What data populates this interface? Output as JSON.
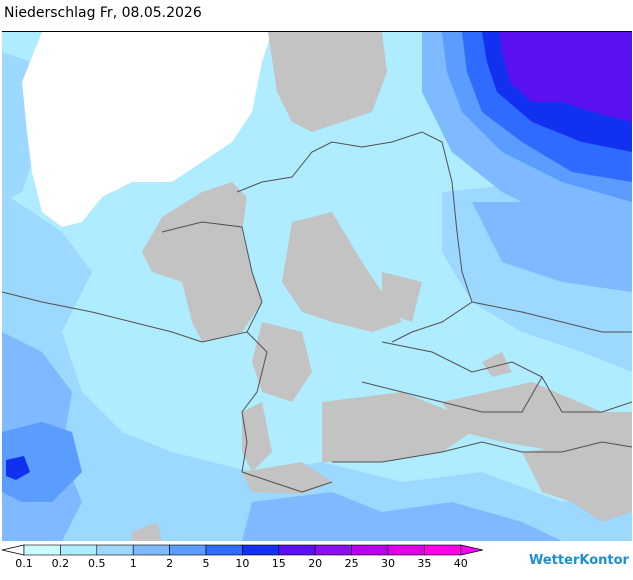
{
  "title": "Niederschlag Fr, 08.05.2026",
  "brand": "WetterKontor",
  "icons": {
    "brand": "raindrop-icon"
  },
  "legend": {
    "labels": [
      "0.1",
      "0.2",
      "0.5",
      "1",
      "2",
      "5",
      "10",
      "15",
      "20",
      "25",
      "30",
      "35",
      "40"
    ],
    "colors": [
      "#ffffff",
      "#ccffff",
      "#b0ecff",
      "#9cd8ff",
      "#7fb9ff",
      "#5a9cff",
      "#2f6bff",
      "#1230f0",
      "#5a10f0",
      "#8a10ee",
      "#b800ee",
      "#e000e8",
      "#ff00e8",
      "#ff00ff"
    ]
  },
  "map": {
    "land_color": "#c3c3c3",
    "sea_color": "#ffffff",
    "border_color": "#505050"
  }
}
